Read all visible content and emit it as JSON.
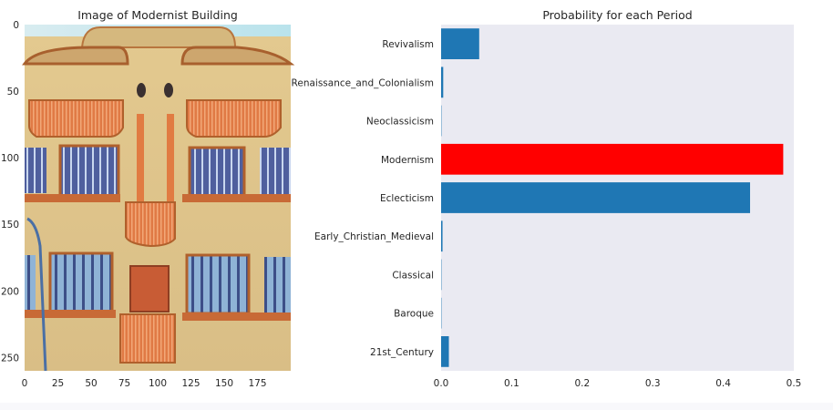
{
  "left_panel": {
    "title": "Image of Modernist Building",
    "x_ticks": [
      "0",
      "25",
      "50",
      "75",
      "100",
      "125",
      "150",
      "175"
    ],
    "y_ticks": [
      "0",
      "50",
      "100",
      "150",
      "200",
      "250"
    ],
    "xlim": [
      0,
      200
    ],
    "ylim": [
      0,
      260
    ]
  },
  "chart_data": {
    "type": "bar",
    "orientation": "horizontal",
    "title": "Probability for each Period",
    "categories": [
      "Revivalism",
      "Renaissance_and_Colonialism",
      "Neoclassicism",
      "Modernism",
      "Eclecticism",
      "Early_Christian_Medieval",
      "Classical",
      "Baroque",
      "21st_Century"
    ],
    "values": [
      0.054,
      0.003,
      0.0005,
      0.485,
      0.438,
      0.002,
      0.0005,
      0.0005,
      0.011
    ],
    "highlight_category": "Modernism",
    "highlight_color": "#ff0000",
    "bar_color": "#1f77b4",
    "background_color": "#eaeaf2",
    "xlim": [
      0,
      0.5
    ],
    "x_ticks": [
      "0.0",
      "0.1",
      "0.2",
      "0.3",
      "0.4",
      "0.5"
    ],
    "xlabel": "",
    "ylabel": "",
    "grid": false
  }
}
